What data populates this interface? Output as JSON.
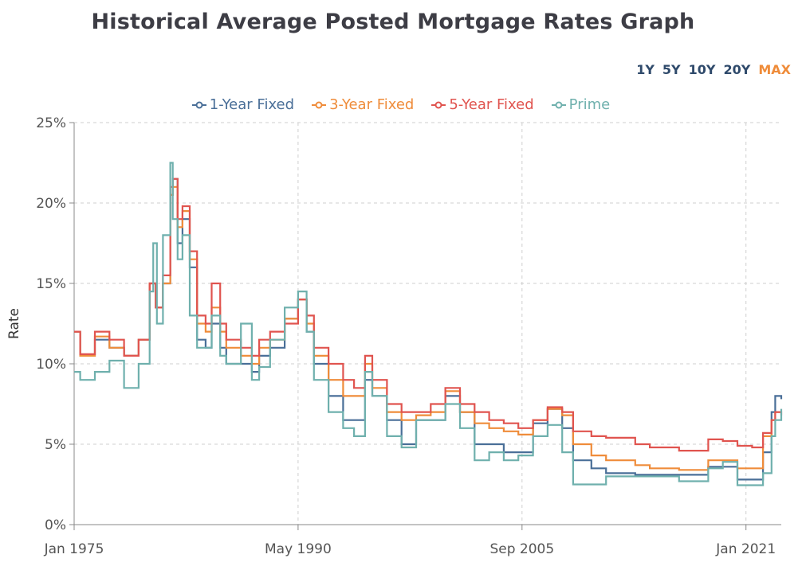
{
  "page": {
    "title": "Historical Average Posted Mortgage Rates Graph"
  },
  "range_buttons": [
    {
      "label": "1Y",
      "active": false
    },
    {
      "label": "5Y",
      "active": false
    },
    {
      "label": "10Y",
      "active": false
    },
    {
      "label": "20Y",
      "active": false
    },
    {
      "label": "MAX",
      "active": true
    }
  ],
  "chart_data": {
    "type": "line",
    "title": "Historical Average Posted Mortgage Rates Graph",
    "ylabel": "Rate",
    "xlabel": "",
    "x_type": "date",
    "xlim": [
      "1975-01",
      "2023-06"
    ],
    "ylim": [
      0,
      25
    ],
    "y_ticks": [
      "0%",
      "5%",
      "10%",
      "15%",
      "20%",
      "25%"
    ],
    "x_ticks": [
      {
        "date": "1975-01",
        "label": "Jan 1975"
      },
      {
        "date": "1990-05",
        "label": "May 1990"
      },
      {
        "date": "2005-09",
        "label": "Sep 2005"
      },
      {
        "date": "2021-01",
        "label": "Jan 2021"
      }
    ],
    "grid": true,
    "legend_position": "top-center",
    "series": [
      {
        "name": "1-Year Fixed",
        "color": "#4a6f98",
        "points": [
          [
            "1975-01",
            12.0
          ],
          [
            "1975-06",
            10.5
          ],
          [
            "1976-06",
            11.5
          ],
          [
            "1977-06",
            11.0
          ],
          [
            "1978-06",
            10.5
          ],
          [
            "1979-06",
            11.5
          ],
          [
            "1980-03",
            15.0
          ],
          [
            "1980-08",
            13.5
          ],
          [
            "1981-02",
            15.0
          ],
          [
            "1981-08",
            20.5
          ],
          [
            "1981-10",
            21.5
          ],
          [
            "1982-02",
            17.5
          ],
          [
            "1982-06",
            19.0
          ],
          [
            "1982-12",
            16.0
          ],
          [
            "1983-06",
            11.5
          ],
          [
            "1984-01",
            11.0
          ],
          [
            "1984-06",
            12.5
          ],
          [
            "1985-01",
            11.0
          ],
          [
            "1985-06",
            10.0
          ],
          [
            "1986-06",
            10.0
          ],
          [
            "1987-03",
            9.5
          ],
          [
            "1987-09",
            10.5
          ],
          [
            "1988-06",
            11.0
          ],
          [
            "1989-06",
            12.8
          ],
          [
            "1990-05",
            14.0
          ],
          [
            "1990-12",
            12.0
          ],
          [
            "1991-06",
            10.0
          ],
          [
            "1992-06",
            8.0
          ],
          [
            "1993-06",
            6.5
          ],
          [
            "1994-03",
            6.5
          ],
          [
            "1994-12",
            9.0
          ],
          [
            "1995-06",
            8.0
          ],
          [
            "1996-06",
            6.5
          ],
          [
            "1997-06",
            5.0
          ],
          [
            "1998-06",
            6.5
          ],
          [
            "1999-06",
            6.5
          ],
          [
            "2000-06",
            8.0
          ],
          [
            "2001-06",
            7.0
          ],
          [
            "2002-06",
            5.0
          ],
          [
            "2003-06",
            5.0
          ],
          [
            "2004-06",
            4.5
          ],
          [
            "2005-06",
            4.5
          ],
          [
            "2006-06",
            6.3
          ],
          [
            "2007-06",
            7.2
          ],
          [
            "2008-06",
            6.0
          ],
          [
            "2009-03",
            4.0
          ],
          [
            "2010-06",
            3.5
          ],
          [
            "2011-06",
            3.2
          ],
          [
            "2013-06",
            3.1
          ],
          [
            "2014-06",
            3.1
          ],
          [
            "2016-06",
            3.1
          ],
          [
            "2018-06",
            3.6
          ],
          [
            "2019-06",
            3.6
          ],
          [
            "2020-06",
            2.8
          ],
          [
            "2021-06",
            2.8
          ],
          [
            "2022-03",
            4.5
          ],
          [
            "2022-10",
            7.0
          ],
          [
            "2023-01",
            8.0
          ],
          [
            "2023-06",
            7.8
          ]
        ]
      },
      {
        "name": "3-Year Fixed",
        "color": "#ef8c3a",
        "points": [
          [
            "1975-01",
            12.0
          ],
          [
            "1975-06",
            10.5
          ],
          [
            "1976-06",
            11.7
          ],
          [
            "1977-06",
            11.0
          ],
          [
            "1978-06",
            10.5
          ],
          [
            "1979-06",
            11.5
          ],
          [
            "1980-03",
            15.0
          ],
          [
            "1980-08",
            13.5
          ],
          [
            "1981-02",
            15.0
          ],
          [
            "1981-08",
            20.5
          ],
          [
            "1981-10",
            21.0
          ],
          [
            "1982-02",
            18.5
          ],
          [
            "1982-06",
            19.5
          ],
          [
            "1982-12",
            16.5
          ],
          [
            "1983-06",
            12.5
          ],
          [
            "1984-01",
            12.0
          ],
          [
            "1984-06",
            13.5
          ],
          [
            "1985-01",
            12.0
          ],
          [
            "1985-06",
            11.0
          ],
          [
            "1986-06",
            10.5
          ],
          [
            "1987-03",
            10.0
          ],
          [
            "1987-09",
            11.0
          ],
          [
            "1988-06",
            11.5
          ],
          [
            "1989-06",
            12.8
          ],
          [
            "1990-05",
            14.0
          ],
          [
            "1990-12",
            12.5
          ],
          [
            "1991-06",
            10.5
          ],
          [
            "1992-06",
            9.0
          ],
          [
            "1993-06",
            8.0
          ],
          [
            "1994-03",
            8.0
          ],
          [
            "1994-12",
            10.0
          ],
          [
            "1995-06",
            8.5
          ],
          [
            "1996-06",
            7.0
          ],
          [
            "1997-06",
            6.5
          ],
          [
            "1998-06",
            6.8
          ],
          [
            "1999-06",
            7.0
          ],
          [
            "2000-06",
            8.3
          ],
          [
            "2001-06",
            7.0
          ],
          [
            "2002-06",
            6.3
          ],
          [
            "2003-06",
            6.0
          ],
          [
            "2004-06",
            5.8
          ],
          [
            "2005-06",
            5.6
          ],
          [
            "2006-06",
            6.5
          ],
          [
            "2007-06",
            7.2
          ],
          [
            "2008-06",
            6.8
          ],
          [
            "2009-03",
            5.0
          ],
          [
            "2010-06",
            4.3
          ],
          [
            "2011-06",
            4.0
          ],
          [
            "2013-06",
            3.7
          ],
          [
            "2014-06",
            3.5
          ],
          [
            "2016-06",
            3.4
          ],
          [
            "2018-06",
            4.0
          ],
          [
            "2019-06",
            4.0
          ],
          [
            "2020-06",
            3.5
          ],
          [
            "2021-06",
            3.5
          ],
          [
            "2022-03",
            5.5
          ],
          [
            "2022-10",
            6.5
          ],
          [
            "2023-01",
            7.0
          ],
          [
            "2023-06",
            7.0
          ]
        ]
      },
      {
        "name": "5-Year Fixed",
        "color": "#e0544f",
        "points": [
          [
            "1975-01",
            12.0
          ],
          [
            "1975-06",
            10.6
          ],
          [
            "1976-06",
            12.0
          ],
          [
            "1977-06",
            11.5
          ],
          [
            "1978-06",
            10.5
          ],
          [
            "1979-06",
            11.5
          ],
          [
            "1980-03",
            15.0
          ],
          [
            "1980-08",
            13.5
          ],
          [
            "1981-02",
            15.5
          ],
          [
            "1981-08",
            21.0
          ],
          [
            "1981-10",
            21.5
          ],
          [
            "1982-02",
            19.0
          ],
          [
            "1982-06",
            19.8
          ],
          [
            "1982-12",
            17.0
          ],
          [
            "1983-06",
            13.0
          ],
          [
            "1984-01",
            12.5
          ],
          [
            "1984-06",
            15.0
          ],
          [
            "1985-01",
            12.5
          ],
          [
            "1985-06",
            11.5
          ],
          [
            "1986-06",
            11.0
          ],
          [
            "1987-03",
            10.5
          ],
          [
            "1987-09",
            11.5
          ],
          [
            "1988-06",
            12.0
          ],
          [
            "1989-06",
            12.5
          ],
          [
            "1990-05",
            14.0
          ],
          [
            "1990-12",
            13.0
          ],
          [
            "1991-06",
            11.0
          ],
          [
            "1992-06",
            10.0
          ],
          [
            "1993-06",
            9.0
          ],
          [
            "1994-03",
            8.5
          ],
          [
            "1994-12",
            10.5
          ],
          [
            "1995-06",
            9.0
          ],
          [
            "1996-06",
            7.5
          ],
          [
            "1997-06",
            7.0
          ],
          [
            "1998-06",
            7.0
          ],
          [
            "1999-06",
            7.5
          ],
          [
            "2000-06",
            8.5
          ],
          [
            "2001-06",
            7.5
          ],
          [
            "2002-06",
            7.0
          ],
          [
            "2003-06",
            6.5
          ],
          [
            "2004-06",
            6.3
          ],
          [
            "2005-06",
            6.0
          ],
          [
            "2006-06",
            6.5
          ],
          [
            "2007-06",
            7.3
          ],
          [
            "2008-06",
            7.0
          ],
          [
            "2009-03",
            5.8
          ],
          [
            "2010-06",
            5.5
          ],
          [
            "2011-06",
            5.4
          ],
          [
            "2013-06",
            5.0
          ],
          [
            "2014-06",
            4.8
          ],
          [
            "2016-06",
            4.6
          ],
          [
            "2018-06",
            5.3
          ],
          [
            "2019-06",
            5.2
          ],
          [
            "2020-06",
            4.9
          ],
          [
            "2021-06",
            4.8
          ],
          [
            "2022-03",
            5.7
          ],
          [
            "2022-10",
            6.5
          ],
          [
            "2023-01",
            7.0
          ],
          [
            "2023-06",
            6.8
          ]
        ]
      },
      {
        "name": "Prime",
        "color": "#6fb0ad",
        "points": [
          [
            "1975-01",
            9.5
          ],
          [
            "1975-06",
            9.0
          ],
          [
            "1976-06",
            9.5
          ],
          [
            "1977-06",
            10.2
          ],
          [
            "1978-06",
            8.5
          ],
          [
            "1979-06",
            10.0
          ],
          [
            "1980-03",
            14.5
          ],
          [
            "1980-06",
            17.5
          ],
          [
            "1980-09",
            12.5
          ],
          [
            "1981-02",
            18.0
          ],
          [
            "1981-08",
            22.5
          ],
          [
            "1981-10",
            19.0
          ],
          [
            "1982-02",
            16.5
          ],
          [
            "1982-06",
            18.0
          ],
          [
            "1982-12",
            13.0
          ],
          [
            "1983-06",
            11.0
          ],
          [
            "1984-01",
            11.0
          ],
          [
            "1984-06",
            13.0
          ],
          [
            "1985-01",
            10.5
          ],
          [
            "1985-06",
            10.0
          ],
          [
            "1986-06",
            12.5
          ],
          [
            "1987-03",
            9.0
          ],
          [
            "1987-09",
            9.8
          ],
          [
            "1988-06",
            11.5
          ],
          [
            "1989-06",
            13.5
          ],
          [
            "1990-05",
            14.5
          ],
          [
            "1990-12",
            12.0
          ],
          [
            "1991-06",
            9.0
          ],
          [
            "1992-06",
            7.0
          ],
          [
            "1993-06",
            6.0
          ],
          [
            "1994-03",
            5.5
          ],
          [
            "1994-12",
            9.5
          ],
          [
            "1995-06",
            8.0
          ],
          [
            "1996-06",
            5.5
          ],
          [
            "1997-06",
            4.8
          ],
          [
            "1998-06",
            6.5
          ],
          [
            "1999-06",
            6.5
          ],
          [
            "2000-06",
            7.5
          ],
          [
            "2001-06",
            6.0
          ],
          [
            "2002-06",
            4.0
          ],
          [
            "2003-06",
            4.5
          ],
          [
            "2004-06",
            4.0
          ],
          [
            "2005-06",
            4.3
          ],
          [
            "2006-06",
            5.5
          ],
          [
            "2007-06",
            6.2
          ],
          [
            "2008-06",
            4.5
          ],
          [
            "2009-03",
            2.5
          ],
          [
            "2010-06",
            2.5
          ],
          [
            "2011-06",
            3.0
          ],
          [
            "2013-06",
            3.0
          ],
          [
            "2014-06",
            3.0
          ],
          [
            "2016-06",
            2.7
          ],
          [
            "2018-06",
            3.5
          ],
          [
            "2019-06",
            3.9
          ],
          [
            "2020-06",
            2.45
          ],
          [
            "2021-06",
            2.45
          ],
          [
            "2022-03",
            3.2
          ],
          [
            "2022-10",
            5.5
          ],
          [
            "2023-01",
            6.5
          ],
          [
            "2023-06",
            7.2
          ]
        ]
      }
    ]
  }
}
